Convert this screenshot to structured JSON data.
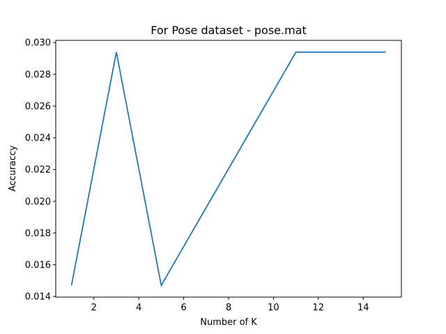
{
  "chart_data": {
    "type": "line",
    "title": "For Pose dataset - pose.mat",
    "xlabel": "Number of K",
    "ylabel": "Accuraccy",
    "x": [
      1,
      3,
      5,
      7,
      9,
      11,
      13,
      15
    ],
    "series": [
      {
        "values": [
          0.0147,
          0.0294,
          0.0147,
          0.0196,
          0.0245,
          0.0294,
          0.0294,
          0.0294
        ],
        "color": "#1f77b4"
      }
    ],
    "xlim": [
      0.3,
      15.7
    ],
    "ylim": [
      0.01396,
      0.03014
    ],
    "xticks": [
      2,
      4,
      6,
      8,
      10,
      12,
      14
    ],
    "yticks": [
      0.014,
      0.016,
      0.018,
      0.02,
      0.022,
      0.024,
      0.026,
      0.028,
      0.03
    ],
    "xtick_labels": [
      "2",
      "4",
      "6",
      "8",
      "10",
      "12",
      "14"
    ],
    "ytick_labels": [
      "0.014",
      "0.016",
      "0.018",
      "0.020",
      "0.022",
      "0.024",
      "0.026",
      "0.028",
      "0.030"
    ],
    "grid": false,
    "legend": false
  }
}
